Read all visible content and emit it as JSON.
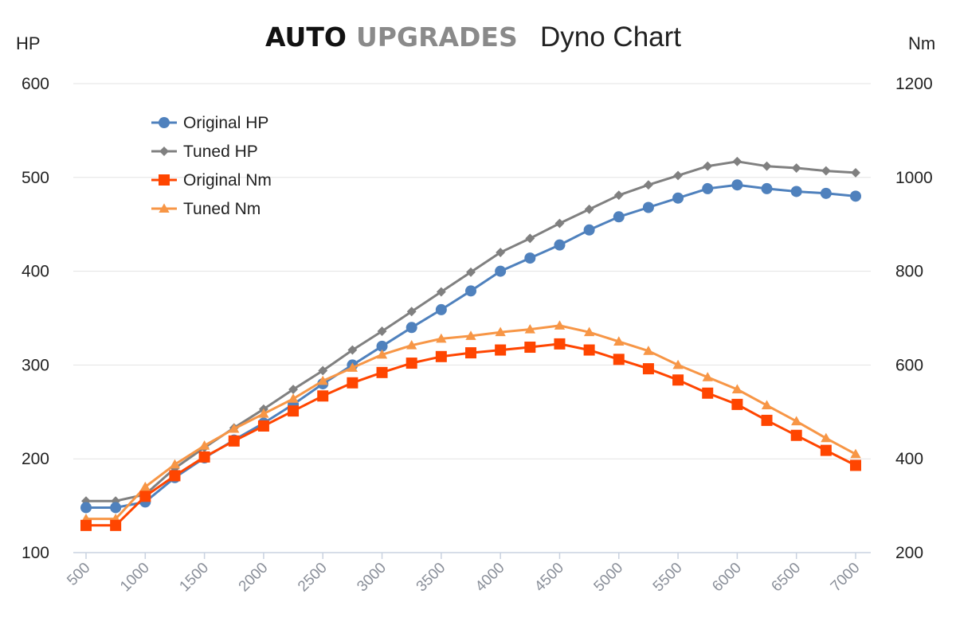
{
  "chart_data": {
    "type": "line",
    "title_brand_primary": "AUTO",
    "title_brand_secondary": "UPGRADES",
    "title": "Dyno Chart",
    "ylabel_left": "HP",
    "ylabel_right": "Nm",
    "ylim_left": [
      100,
      600
    ],
    "ylim_right": [
      200,
      1200
    ],
    "yticks_left": [
      "100",
      "200",
      "300",
      "400",
      "500",
      "600"
    ],
    "yticks_right": [
      "200",
      "400",
      "600",
      "800",
      "1000",
      "1200"
    ],
    "xlim": [
      500,
      7000
    ],
    "xticks": [
      "500",
      "1000",
      "1500",
      "2000",
      "2500",
      "3000",
      "3500",
      "4000",
      "4500",
      "5000",
      "5500",
      "6000",
      "6500",
      "7000"
    ],
    "x": [
      500,
      750,
      1000,
      1250,
      1500,
      1750,
      2000,
      2250,
      2500,
      2750,
      3000,
      3250,
      3500,
      3750,
      4000,
      4250,
      4500,
      4750,
      5000,
      5250,
      5500,
      5750,
      6000,
      6250,
      6500,
      6750,
      7000
    ],
    "grid": true,
    "legend_position": "top-left",
    "series": [
      {
        "name": "Original HP",
        "axis": "left",
        "color": "#4f81bd",
        "marker": "circle",
        "values": [
          148,
          148,
          154,
          180,
          201,
          220,
          238,
          258,
          280,
          300,
          320,
          340,
          359,
          379,
          400,
          414,
          428,
          444,
          458,
          468,
          478,
          488,
          492,
          488,
          485,
          483,
          480
        ]
      },
      {
        "name": "Tuned HP",
        "axis": "left",
        "color": "#808080",
        "marker": "diamond",
        "values": [
          155,
          155,
          162,
          190,
          212,
          233,
          253,
          274,
          294,
          316,
          336,
          357,
          378,
          399,
          420,
          435,
          451,
          466,
          481,
          492,
          502,
          512,
          517,
          512,
          510,
          507,
          505
        ]
      },
      {
        "name": "Original Nm",
        "axis": "right",
        "color": "#ff4500",
        "marker": "square",
        "values": [
          258,
          258,
          320,
          364,
          404,
          438,
          470,
          502,
          534,
          562,
          584,
          604,
          618,
          626,
          632,
          638,
          645,
          632,
          612,
          592,
          568,
          540,
          516,
          482,
          450,
          418,
          386
        ]
      },
      {
        "name": "Tuned Nm",
        "axis": "right",
        "color": "#f79646",
        "marker": "triangle",
        "values": [
          272,
          272,
          340,
          388,
          428,
          464,
          496,
          528,
          566,
          594,
          622,
          642,
          656,
          662,
          670,
          676,
          684,
          670,
          650,
          630,
          600,
          574,
          548,
          514,
          480,
          444,
          410
        ]
      }
    ]
  }
}
